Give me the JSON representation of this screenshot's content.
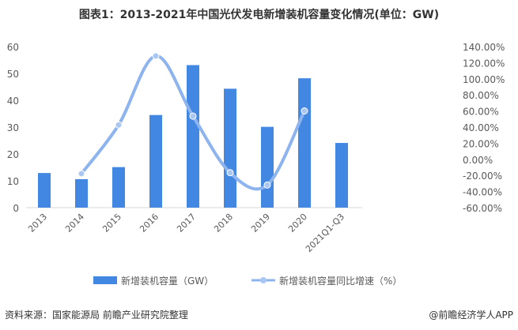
{
  "chart_data": {
    "type": "bar",
    "title": "图表1：2013-2021年中国光伏发电新增装机容量变化情况(单位：GW)",
    "categories": [
      "2013",
      "2014",
      "2015",
      "2016",
      "2017",
      "2018",
      "2019",
      "2020",
      "2021Q1-Q3"
    ],
    "series": [
      {
        "name": "新增装机容量（GW）",
        "type": "bar",
        "axis": "left",
        "color": "#4287E2",
        "values": [
          12.9,
          10.6,
          15.1,
          34.5,
          53.1,
          44.3,
          30.1,
          48.2,
          24.1
        ]
      },
      {
        "name": "新增装机容量同比增速（%）",
        "type": "line",
        "axis": "right",
        "color": "#8DB4EE",
        "values": [
          null,
          -17.8,
          42.7,
          128.3,
          53.6,
          -16.6,
          -31.9,
          60.1,
          null
        ]
      }
    ],
    "left_axis": {
      "ylim": [
        0,
        60
      ],
      "ticks": [
        "0",
        "10",
        "20",
        "30",
        "40",
        "50",
        "60"
      ]
    },
    "right_axis": {
      "ylim": [
        -60,
        140
      ],
      "ticks": [
        "-60.00%",
        "-40.00%",
        "-20.00%",
        "0.00%",
        "20.00%",
        "40.00%",
        "60.00%",
        "80.00%",
        "100.00%",
        "120.00%",
        "140.00%"
      ]
    },
    "legend": "bottom"
  },
  "footer": {
    "source": "资料来源：国家能源局 前瞻产业研究院整理",
    "brand": "@前瞻经济学人APP"
  },
  "watermark": "前瞻产业研究院"
}
